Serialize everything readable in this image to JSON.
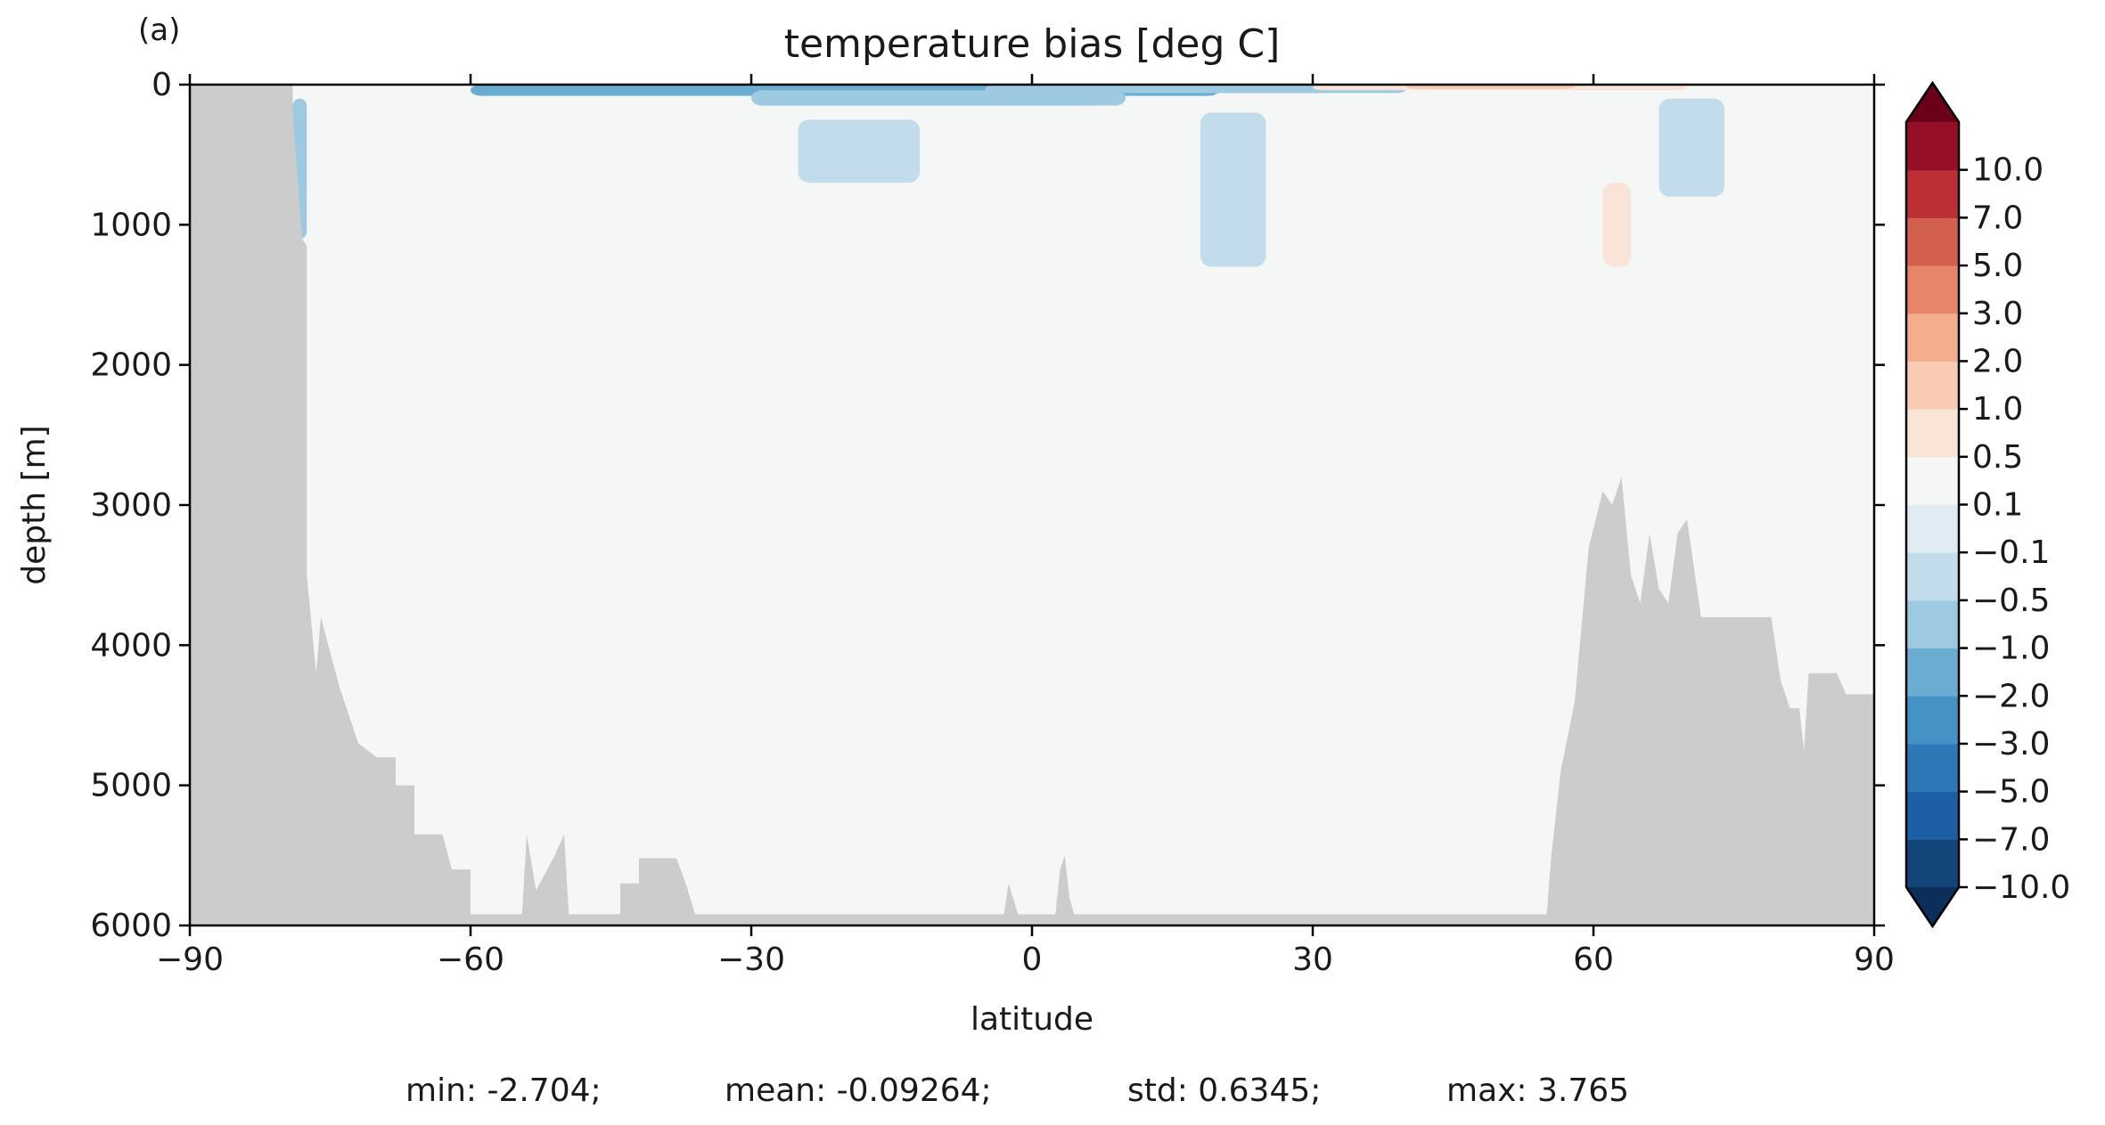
{
  "panel_label": "(a)",
  "chart_data": {
    "type": "heatmap",
    "title": "temperature bias [deg C]",
    "xlabel": "latitude",
    "ylabel": "depth [m]",
    "xlim": [
      -90,
      90
    ],
    "ylim": [
      6000,
      0
    ],
    "y_inverted": true,
    "xticks": [
      -90,
      -60,
      -30,
      0,
      30,
      60,
      90
    ],
    "xtick_labels": [
      "−90",
      "−60",
      "−30",
      "0",
      "30",
      "60",
      "90"
    ],
    "yticks": [
      0,
      1000,
      2000,
      3000,
      4000,
      5000,
      6000
    ],
    "ytick_labels": [
      "0",
      "1000",
      "2000",
      "3000",
      "4000",
      "5000",
      "6000"
    ],
    "colorbar": {
      "levels": [
        -10.0,
        -7.0,
        -5.0,
        -3.0,
        -2.0,
        -1.0,
        -0.5,
        -0.1,
        0.1,
        0.5,
        1.0,
        2.0,
        3.0,
        5.0,
        7.0,
        10.0
      ],
      "level_labels": [
        "−10.0",
        "−7.0",
        "−5.0",
        "−3.0",
        "−2.0",
        "−1.0",
        "−0.5",
        "−0.1",
        "0.1",
        "0.5",
        "1.0",
        "2.0",
        "3.0",
        "5.0",
        "7.0",
        "10.0"
      ],
      "colors": [
        "#13457a",
        "#1d5fa4",
        "#2f78b7",
        "#4592c6",
        "#6aacd2",
        "#9ecae1",
        "#c3dcec",
        "#e0ebf3",
        "#f5f6f6",
        "#f9e4d7",
        "#f9cbb4",
        "#f4ad8d",
        "#e6856a",
        "#d3604f",
        "#bc2f35",
        "#960f28"
      ],
      "under_color": "#0b2f5a",
      "over_color": "#6b0019",
      "extend": "both"
    },
    "land_color": "#cccccc",
    "background_value_color": "#f5f6f6",
    "seafloor_profile": [
      {
        "lat": -90,
        "depth": 0
      },
      {
        "lat": -79,
        "depth": 0
      },
      {
        "lat": -79,
        "depth": 200
      },
      {
        "lat": -78,
        "depth": 1100
      },
      {
        "lat": -77.5,
        "depth": 1150
      },
      {
        "lat": -77.5,
        "depth": 3500
      },
      {
        "lat": -76.5,
        "depth": 4200
      },
      {
        "lat": -76,
        "depth": 3800
      },
      {
        "lat": -74,
        "depth": 4300
      },
      {
        "lat": -72,
        "depth": 4700
      },
      {
        "lat": -70,
        "depth": 4800
      },
      {
        "lat": -68,
        "depth": 4800
      },
      {
        "lat": -68,
        "depth": 5000
      },
      {
        "lat": -66,
        "depth": 5000
      },
      {
        "lat": -66,
        "depth": 5350
      },
      {
        "lat": -63,
        "depth": 5350
      },
      {
        "lat": -62,
        "depth": 5600
      },
      {
        "lat": -60,
        "depth": 5600
      },
      {
        "lat": -60,
        "depth": 5920
      },
      {
        "lat": -54.5,
        "depth": 5920
      },
      {
        "lat": -54,
        "depth": 5350
      },
      {
        "lat": -53,
        "depth": 5750
      },
      {
        "lat": -51,
        "depth": 5500
      },
      {
        "lat": -50,
        "depth": 5350
      },
      {
        "lat": -49.5,
        "depth": 5920
      },
      {
        "lat": -44,
        "depth": 5920
      },
      {
        "lat": -44,
        "depth": 5700
      },
      {
        "lat": -42,
        "depth": 5700
      },
      {
        "lat": -42,
        "depth": 5520
      },
      {
        "lat": -38,
        "depth": 5520
      },
      {
        "lat": -37,
        "depth": 5700
      },
      {
        "lat": -36,
        "depth": 5920
      },
      {
        "lat": -3,
        "depth": 5920
      },
      {
        "lat": -2.5,
        "depth": 5700
      },
      {
        "lat": -1.5,
        "depth": 5920
      },
      {
        "lat": 2.5,
        "depth": 5920
      },
      {
        "lat": 3,
        "depth": 5600
      },
      {
        "lat": 3.5,
        "depth": 5500
      },
      {
        "lat": 4,
        "depth": 5800
      },
      {
        "lat": 4.5,
        "depth": 5920
      },
      {
        "lat": 55,
        "depth": 5920
      },
      {
        "lat": 55.5,
        "depth": 5500
      },
      {
        "lat": 56.5,
        "depth": 4900
      },
      {
        "lat": 58,
        "depth": 4400
      },
      {
        "lat": 59.5,
        "depth": 3300
      },
      {
        "lat": 61,
        "depth": 2900
      },
      {
        "lat": 62,
        "depth": 3000
      },
      {
        "lat": 63,
        "depth": 2800
      },
      {
        "lat": 64,
        "depth": 3500
      },
      {
        "lat": 65,
        "depth": 3700
      },
      {
        "lat": 66,
        "depth": 3200
      },
      {
        "lat": 67,
        "depth": 3600
      },
      {
        "lat": 68,
        "depth": 3700
      },
      {
        "lat": 69,
        "depth": 3200
      },
      {
        "lat": 70,
        "depth": 3100
      },
      {
        "lat": 71.5,
        "depth": 3800
      },
      {
        "lat": 75,
        "depth": 3800
      },
      {
        "lat": 79,
        "depth": 3800
      },
      {
        "lat": 80,
        "depth": 4250
      },
      {
        "lat": 81,
        "depth": 4450
      },
      {
        "lat": 82,
        "depth": 4450
      },
      {
        "lat": 82.5,
        "depth": 4750
      },
      {
        "lat": 83,
        "depth": 4200
      },
      {
        "lat": 86,
        "depth": 4200
      },
      {
        "lat": 87,
        "depth": 4350
      },
      {
        "lat": 90,
        "depth": 4350
      },
      {
        "lat": 90,
        "depth": 6000
      }
    ],
    "bias_features": [
      {
        "lat": [
          -60,
          20
        ],
        "depth": [
          0,
          80
        ],
        "value": -1.0
      },
      {
        "lat": [
          -30,
          10
        ],
        "depth": [
          40,
          150
        ],
        "value": -0.5
      },
      {
        "lat": [
          -5,
          40
        ],
        "depth": [
          0,
          60
        ],
        "value": -0.5
      },
      {
        "lat": [
          30,
          70
        ],
        "depth": [
          0,
          40
        ],
        "value": 1.0
      },
      {
        "lat": [
          40,
          58
        ],
        "depth": [
          0,
          30
        ],
        "value": 2.0
      },
      {
        "lat": [
          -78,
          -65
        ],
        "depth": [
          40,
          400
        ],
        "value": 0.3
      },
      {
        "lat": [
          -55,
          -30
        ],
        "depth": [
          150,
          500
        ],
        "value": 0.3
      },
      {
        "lat": [
          -25,
          -12
        ],
        "depth": [
          250,
          700
        ],
        "value": -0.3
      },
      {
        "lat": [
          -12,
          -2
        ],
        "depth": [
          200,
          450
        ],
        "value": 0.3
      },
      {
        "lat": [
          5,
          15
        ],
        "depth": [
          150,
          400
        ],
        "value": 0.3
      },
      {
        "lat": [
          18,
          25
        ],
        "depth": [
          200,
          1300
        ],
        "value": -0.3
      },
      {
        "lat": [
          27,
          34
        ],
        "depth": [
          300,
          700
        ],
        "value": 0.3
      },
      {
        "lat": [
          58,
          66
        ],
        "depth": [
          80,
          2600
        ],
        "value": 0.3
      },
      {
        "lat": [
          61,
          64
        ],
        "depth": [
          700,
          1300
        ],
        "value": 0.7
      },
      {
        "lat": [
          -79,
          -77.5
        ],
        "depth": [
          100,
          1100
        ],
        "value": -0.7
      },
      {
        "lat": [
          67,
          74
        ],
        "depth": [
          100,
          800
        ],
        "value": -0.3
      }
    ]
  },
  "stats": {
    "min_text": "min: -2.704;",
    "mean_text": "mean: -0.09264;",
    "std_text": "std: 0.6345;",
    "max_text": "max: 3.765"
  }
}
